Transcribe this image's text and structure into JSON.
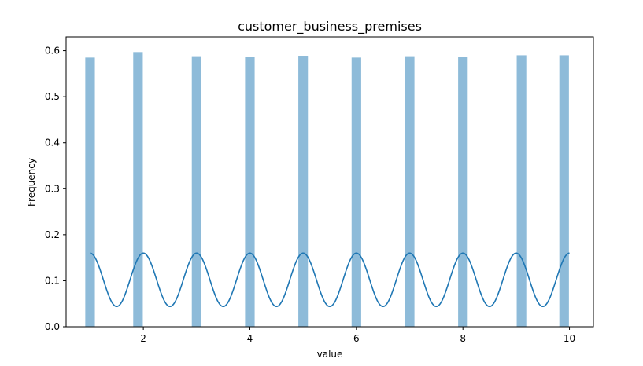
{
  "chart_data": {
    "type": "bar",
    "title": "customer_business_premises",
    "xlabel": "value",
    "ylabel": "Frequency",
    "xlim": [
      0.55,
      10.45
    ],
    "ylim": [
      0,
      0.63
    ],
    "xticks": [
      2,
      4,
      6,
      8,
      10
    ],
    "yticks": [
      0.0,
      0.1,
      0.2,
      0.3,
      0.4,
      0.5,
      0.6
    ],
    "grid": false,
    "bar_color": "#8ebbd9",
    "bar_half_width": 0.09,
    "histogram": {
      "x": [
        1,
        1.9,
        3,
        4,
        5,
        6,
        7,
        8,
        9.1,
        9.9
      ],
      "values": [
        0.585,
        0.597,
        0.588,
        0.587,
        0.589,
        0.585,
        0.588,
        0.587,
        0.59,
        0.59
      ]
    },
    "density_curve": {
      "color": "#1f77b4",
      "x_start": 1,
      "x_end": 10,
      "peaks_at": [
        1,
        2,
        3,
        4,
        5,
        6,
        7,
        8,
        9,
        10
      ],
      "peak_value": 0.16,
      "trough_value": 0.044
    }
  }
}
